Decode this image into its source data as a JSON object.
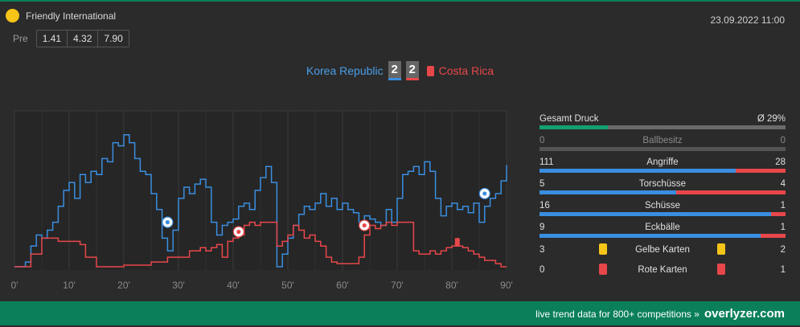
{
  "header": {
    "competition": "Friendly International",
    "datetime": "23.09.2022 11:00",
    "pre_label": "Pre",
    "odds": [
      "1.41",
      "4.32",
      "7.90"
    ]
  },
  "match": {
    "home_team": "Korea Republic",
    "away_team": "Costa Rica",
    "home_score": "2",
    "away_score": "2"
  },
  "chart_data": {
    "type": "line",
    "x_ticks": [
      "0'",
      "10'",
      "20'",
      "30'",
      "40'",
      "50'",
      "60'",
      "70'",
      "80'",
      "90'"
    ],
    "xlim": [
      0,
      90
    ],
    "ylim": [
      0,
      100
    ],
    "series": [
      {
        "name": "Korea Republic",
        "color": "#3a8ee0",
        "points": [
          [
            0,
            2
          ],
          [
            2,
            5
          ],
          [
            3,
            15
          ],
          [
            4,
            22
          ],
          [
            5,
            20
          ],
          [
            6,
            25
          ],
          [
            7,
            30
          ],
          [
            8,
            40
          ],
          [
            9,
            50
          ],
          [
            10,
            55
          ],
          [
            11,
            45
          ],
          [
            12,
            60
          ],
          [
            13,
            55
          ],
          [
            14,
            62
          ],
          [
            15,
            60
          ],
          [
            16,
            70
          ],
          [
            17,
            68
          ],
          [
            18,
            80
          ],
          [
            19,
            78
          ],
          [
            20,
            85
          ],
          [
            21,
            80
          ],
          [
            22,
            70
          ],
          [
            23,
            62
          ],
          [
            24,
            60
          ],
          [
            25,
            48
          ],
          [
            26,
            38
          ],
          [
            27,
            20
          ],
          [
            28,
            12
          ],
          [
            29,
            25
          ],
          [
            30,
            45
          ],
          [
            31,
            52
          ],
          [
            32,
            48
          ],
          [
            33,
            54
          ],
          [
            34,
            57
          ],
          [
            35,
            52
          ],
          [
            36,
            30
          ],
          [
            37,
            22
          ],
          [
            38,
            28
          ],
          [
            39,
            30
          ],
          [
            40,
            32
          ],
          [
            41,
            40
          ],
          [
            42,
            42
          ],
          [
            43,
            38
          ],
          [
            44,
            50
          ],
          [
            45,
            58
          ],
          [
            46,
            65
          ],
          [
            47,
            55
          ],
          [
            48,
            2
          ],
          [
            49,
            10
          ],
          [
            50,
            20
          ],
          [
            51,
            28
          ],
          [
            52,
            35
          ],
          [
            53,
            40
          ],
          [
            54,
            38
          ],
          [
            55,
            42
          ],
          [
            56,
            48
          ],
          [
            57,
            40
          ],
          [
            58,
            45
          ],
          [
            59,
            38
          ],
          [
            60,
            42
          ],
          [
            61,
            38
          ],
          [
            62,
            36
          ],
          [
            63,
            30
          ],
          [
            64,
            34
          ],
          [
            65,
            32
          ],
          [
            66,
            30
          ],
          [
            67,
            28
          ],
          [
            68,
            38
          ],
          [
            69,
            30
          ],
          [
            70,
            45
          ],
          [
            71,
            60
          ],
          [
            72,
            62
          ],
          [
            73,
            65
          ],
          [
            74,
            60
          ],
          [
            75,
            68
          ],
          [
            76,
            62
          ],
          [
            77,
            45
          ],
          [
            78,
            34
          ],
          [
            79,
            40
          ],
          [
            80,
            42
          ],
          [
            81,
            38
          ],
          [
            82,
            40
          ],
          [
            83,
            36
          ],
          [
            84,
            42
          ],
          [
            85,
            30
          ],
          [
            86,
            40
          ],
          [
            87,
            45
          ],
          [
            88,
            48
          ],
          [
            89,
            56
          ],
          [
            90,
            66
          ]
        ]
      },
      {
        "name": "Costa Rica",
        "color": "#e8474a",
        "points": [
          [
            0,
            2
          ],
          [
            3,
            10
          ],
          [
            5,
            20
          ],
          [
            8,
            18
          ],
          [
            11,
            18
          ],
          [
            12,
            16
          ],
          [
            13,
            8
          ],
          [
            15,
            2
          ],
          [
            20,
            3
          ],
          [
            25,
            5
          ],
          [
            28,
            8
          ],
          [
            30,
            8
          ],
          [
            32,
            12
          ],
          [
            34,
            14
          ],
          [
            35,
            12
          ],
          [
            36,
            14
          ],
          [
            37,
            16
          ],
          [
            38,
            8
          ],
          [
            39,
            18
          ],
          [
            40,
            20
          ],
          [
            41,
            22
          ],
          [
            42,
            28
          ],
          [
            43,
            30
          ],
          [
            44,
            28
          ],
          [
            45,
            30
          ],
          [
            46,
            30
          ],
          [
            47,
            30
          ],
          [
            48,
            15
          ],
          [
            49,
            18
          ],
          [
            50,
            22
          ],
          [
            51,
            28
          ],
          [
            52,
            25
          ],
          [
            53,
            20
          ],
          [
            54,
            22
          ],
          [
            55,
            18
          ],
          [
            56,
            15
          ],
          [
            57,
            8
          ],
          [
            58,
            5
          ],
          [
            59,
            4
          ],
          [
            60,
            4
          ],
          [
            62,
            4
          ],
          [
            63,
            8
          ],
          [
            64,
            22
          ],
          [
            65,
            28
          ],
          [
            66,
            26
          ],
          [
            67,
            28
          ],
          [
            68,
            30
          ],
          [
            69,
            28
          ],
          [
            70,
            30
          ],
          [
            71,
            30
          ],
          [
            72,
            30
          ],
          [
            73,
            12
          ],
          [
            74,
            10
          ],
          [
            75,
            10
          ],
          [
            76,
            12
          ],
          [
            77,
            10
          ],
          [
            78,
            12
          ],
          [
            79,
            14
          ],
          [
            80,
            15
          ],
          [
            81,
            15
          ],
          [
            82,
            14
          ],
          [
            83,
            12
          ],
          [
            84,
            10
          ],
          [
            85,
            8
          ],
          [
            86,
            6
          ],
          [
            87,
            6
          ],
          [
            88,
            4
          ],
          [
            89,
            2
          ],
          [
            90,
            2
          ]
        ]
      }
    ],
    "goals": [
      {
        "team": "Korea Republic",
        "minute": 28,
        "level": 30
      },
      {
        "team": "Costa Rica",
        "minute": 41,
        "level": 24
      },
      {
        "team": "Costa Rica",
        "minute": 64,
        "level": 28
      },
      {
        "team": "Korea Republic",
        "minute": 86,
        "level": 48
      }
    ],
    "red_cards": [
      {
        "team": "Costa Rica",
        "minute": 81,
        "level": 14
      }
    ]
  },
  "stats": {
    "pressure": {
      "label": "Gesamt Druck",
      "value": "Ø 29%",
      "fraction": 0.29
    },
    "rows": [
      {
        "label": "Ballbesitz",
        "home": "0",
        "away": "0",
        "dim": true
      },
      {
        "label": "Angriffe",
        "home": "111",
        "away": "28"
      },
      {
        "label": "Torschüsse",
        "home": "5",
        "away": "4"
      },
      {
        "label": "Schüsse",
        "home": "16",
        "away": "1"
      },
      {
        "label": "Eckbälle",
        "home": "9",
        "away": "1"
      }
    ],
    "cards": [
      {
        "label": "Gelbe Karten",
        "home": "3",
        "away": "2",
        "color": "#f5c518"
      },
      {
        "label": "Rote Karten",
        "home": "0",
        "away": "1",
        "color": "#e8474a"
      }
    ]
  },
  "footer": {
    "text": "live trend data for 800+ competitions »",
    "brand": "overlyzer.com"
  }
}
